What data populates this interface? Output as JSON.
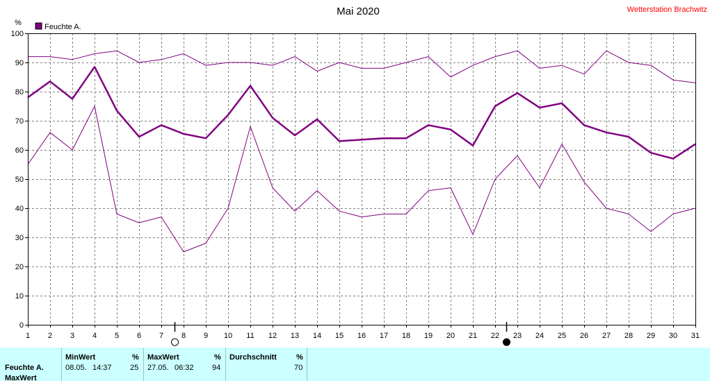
{
  "title": "Mai 2020",
  "station": "Wetterstation Brachwitz",
  "colors": {
    "series": "#800080",
    "station": "#ff0000",
    "stats_bg": "#ccffff"
  },
  "chart_data": {
    "type": "line",
    "title": "Mai 2020",
    "ylabel": "%",
    "xlabel": "",
    "ylim": [
      0,
      100
    ],
    "y_ticks": [
      0,
      10,
      20,
      30,
      40,
      50,
      60,
      70,
      80,
      90,
      100
    ],
    "x": [
      1,
      2,
      3,
      4,
      5,
      6,
      7,
      8,
      9,
      10,
      11,
      12,
      13,
      14,
      15,
      16,
      17,
      18,
      19,
      20,
      21,
      22,
      23,
      24,
      25,
      26,
      27,
      28,
      29,
      30,
      31
    ],
    "grid": true,
    "legend": {
      "position": "top-left",
      "entries": [
        "Feuchte A."
      ]
    },
    "moon_phases": [
      {
        "day": 7.6,
        "phase": "full-moon-icon"
      },
      {
        "day": 22.5,
        "phase": "new-moon-icon"
      }
    ],
    "series": [
      {
        "name": "Feuchte A.",
        "role": "max",
        "values": [
          92,
          92,
          91,
          93,
          94,
          90,
          91,
          93,
          89,
          90,
          90,
          89,
          92,
          87,
          90,
          88,
          88,
          90,
          92,
          85,
          89,
          92,
          94,
          88,
          89,
          86,
          94,
          90,
          89,
          84,
          83
        ]
      },
      {
        "name": "Feuchte A.",
        "role": "mean",
        "values": [
          78,
          83.5,
          77.5,
          88.5,
          73.5,
          64.5,
          68.5,
          65.5,
          64,
          72,
          82,
          71,
          65,
          70.5,
          63,
          63.5,
          64,
          64,
          68.5,
          67,
          61.5,
          75,
          79.5,
          74.5,
          76,
          68.5,
          66,
          64.5,
          59,
          57,
          62
        ]
      },
      {
        "name": "Feuchte A.",
        "role": "min",
        "values": [
          55,
          66,
          60,
          75,
          38,
          35,
          37,
          25,
          28,
          40,
          68,
          47,
          39,
          46,
          39,
          37,
          38,
          38,
          46,
          47,
          31,
          50,
          58,
          47,
          62,
          49,
          40,
          38,
          32,
          38,
          40
        ]
      }
    ]
  },
  "stats": {
    "row_label": "Feuchte A.",
    "row_label_2": "MaxWert",
    "min": {
      "header": "MinWert",
      "unit": "%",
      "date": "08.05.",
      "time": "14:37",
      "value": "25"
    },
    "max": {
      "header": "MaxWert",
      "unit": "%",
      "date": "27.05.",
      "time": "06:32",
      "value": "94"
    },
    "avg": {
      "header": "Durchschnitt",
      "unit": "%",
      "value": "70"
    }
  }
}
